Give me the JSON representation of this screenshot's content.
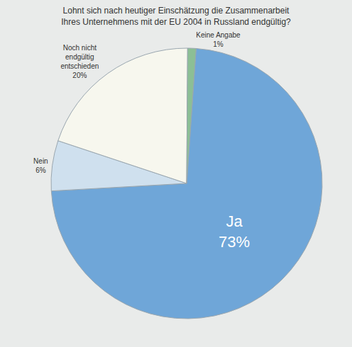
{
  "chart_data": {
    "type": "pie",
    "title": "Lohnt sich nach heutiger Einschätzung die Zusammenarbeit Ihres Unternehmens mit der EU 2004 in Russland endgültig?",
    "categories": [
      "Ja",
      "Nein",
      "Noch nicht endgültig entschieden",
      "Keine Angabe"
    ],
    "values": [
      73,
      6,
      20,
      1
    ],
    "value_labels": [
      "73%",
      "6%",
      "20%",
      "1%"
    ],
    "colors": [
      "#6fa6d8",
      "#cfe0ee",
      "#f7f7ee",
      "#8cbf95"
    ],
    "data_labels": true
  }
}
